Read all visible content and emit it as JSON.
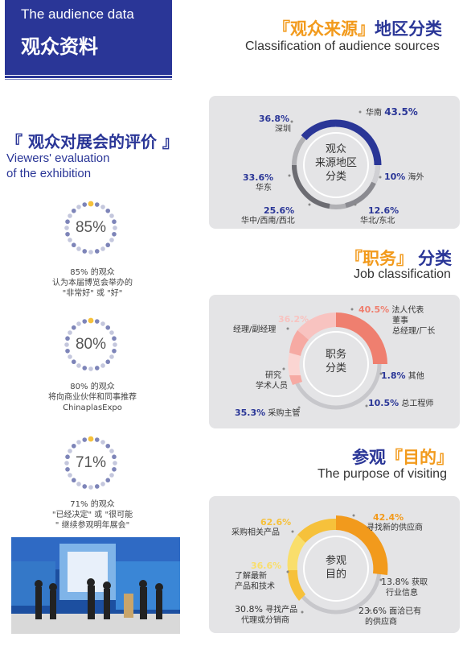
{
  "header": {
    "en": "The audience data",
    "cn": "观众资料"
  },
  "sources": {
    "title_bracket_open": "『",
    "title_main": "观众来源",
    "title_bracket_close": "』",
    "title_tail": "地区分类",
    "subtitle": "Classification of audience sources",
    "center": "观众\n来源地区\n分类",
    "items": [
      {
        "pct": "36.8%",
        "label": "深圳"
      },
      {
        "pct": "43.5%",
        "label": "华南"
      },
      {
        "pct": "10%",
        "label": "海外"
      },
      {
        "pct": "33.6%",
        "label": "华东"
      },
      {
        "pct": "25.6%",
        "label": "华中/西南/西北"
      },
      {
        "pct": "12.6%",
        "label": "华北/东北"
      }
    ]
  },
  "evaluation": {
    "title": "『 观众对展会的评价 』",
    "subtitle_line1": "Viewers' evaluation",
    "subtitle_line2": "of the exhibition",
    "items": [
      {
        "value": "85%",
        "caption1": "85% 的观众",
        "caption2": "认为本届博览会举办的",
        "caption3": "\"非常好\" 或 \"好\""
      },
      {
        "value": "80%",
        "caption1": "80% 的观众",
        "caption2": "将向商业伙伴和同事推荐",
        "caption3": "ChinaplasExpo"
      },
      {
        "value": "71%",
        "caption1": "71% 的观众",
        "caption2": "\"已经决定\" 或 \"很可能",
        "caption3": "\" 继续参观明年展会\""
      }
    ]
  },
  "job": {
    "title_bracket_open": "『",
    "title_main": "职务",
    "title_bracket_close": "』",
    "title_tail": "分类",
    "subtitle": "Job classification",
    "center": "职务\n分类",
    "items": [
      {
        "pct": "36.2%",
        "label": "经理/副经理"
      },
      {
        "pct": "40.5%",
        "label": "法人代表\n董事\n总经理/厂长"
      },
      {
        "pct": "1.8%",
        "label": "其他"
      },
      {
        "pct": "",
        "label": "研究\n学术人员"
      },
      {
        "pct": "35.3%",
        "label": "采购主管"
      },
      {
        "pct": "10.5%",
        "label": "总工程师"
      }
    ]
  },
  "purpose": {
    "title_head": "参观",
    "title_bracket_open": "『",
    "title_main": "目的",
    "title_bracket_close": "』",
    "subtitle": "The purpose of visiting",
    "center": "参观\n目的",
    "items": [
      {
        "pct": "62.6%",
        "label": "采购相关产品"
      },
      {
        "pct": "42.4%",
        "label": "寻找新的供应商"
      },
      {
        "pct": "36.6%",
        "label": "了解最新\n产品和技术"
      },
      {
        "pct": "13.8%",
        "label": "获取\n行业信息"
      },
      {
        "pct": "30.8%",
        "label": "寻找产品\n代理或分销商"
      },
      {
        "pct": "23.6%",
        "label": "面洽已有\n的供应商"
      }
    ]
  },
  "colors": {
    "navy": "#2a3697",
    "orange": "#f29a1c",
    "salmon": "#ef7f6f",
    "pink": "#f8c3c0"
  }
}
